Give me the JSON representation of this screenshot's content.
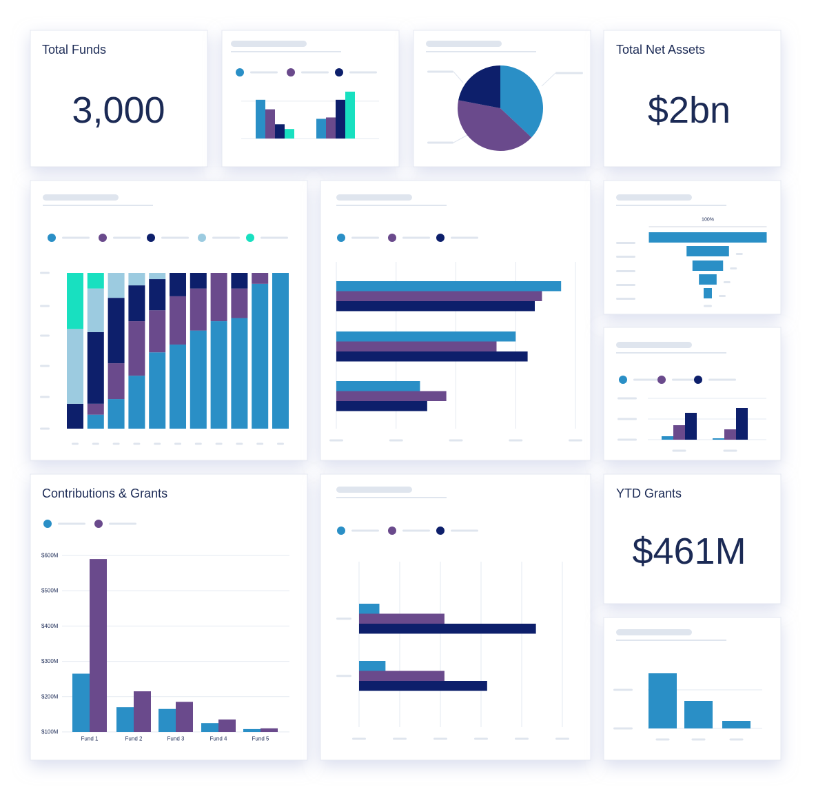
{
  "kpis": [
    {
      "title": "Total Funds",
      "value": "3,000"
    },
    {
      "title": "Total Net Assets",
      "value": "$2bn"
    },
    {
      "title": "YTD Grants",
      "value": "$461M"
    }
  ],
  "chart_data": [
    {
      "type": "bar",
      "categories": [
        null,
        null
      ],
      "ylim": [
        0,
        70
      ],
      "yticks": [
        0,
        55
      ],
      "series": [
        {
          "color": "#2a8fc6",
          "values": [
            57,
            29
          ]
        },
        {
          "color": "#6a4a8c",
          "values": [
            43,
            31
          ]
        },
        {
          "color": "#0d1f6b",
          "values": [
            21,
            57
          ]
        },
        {
          "color": "#18e0c0",
          "values": [
            14,
            69
          ]
        }
      ]
    },
    {
      "type": "pie",
      "values": [
        37,
        41,
        22
      ],
      "colors": [
        "#2a8fc6",
        "#6a4a8c",
        "#0d1f6b"
      ]
    },
    {
      "type": "stacked_bar",
      "categories": [
        null,
        null,
        null,
        null,
        null,
        null,
        null,
        null,
        null,
        null,
        null
      ],
      "ylim": [
        0,
        100
      ],
      "series": [
        {
          "color": "#2a8fc6",
          "values": [
            0,
            9,
            19,
            34,
            49,
            54,
            63,
            69,
            71,
            93,
            100
          ]
        },
        {
          "color": "#6a4a8c",
          "values": [
            0,
            7,
            23,
            35,
            27,
            31,
            27,
            31,
            19,
            7,
            0
          ]
        },
        {
          "color": "#0d1f6b",
          "values": [
            16,
            46,
            42,
            23,
            20,
            15,
            10,
            0,
            10,
            0,
            0
          ]
        },
        {
          "color": "#9ccbe0",
          "values": [
            48,
            28,
            16,
            8,
            4,
            0,
            0,
            0,
            0,
            0,
            0
          ]
        },
        {
          "color": "#18e0c0",
          "values": [
            36,
            10,
            0,
            0,
            0,
            0,
            0,
            0,
            0,
            0,
            0
          ]
        }
      ]
    },
    {
      "type": "hbar",
      "categories": [
        null,
        null,
        null
      ],
      "xlim": [
        0,
        100
      ],
      "xticks": [
        0,
        25,
        50,
        75,
        100
      ],
      "series": [
        {
          "color": "#2a8fc6",
          "values": [
            94,
            75,
            35
          ]
        },
        {
          "color": "#6a4a8c",
          "values": [
            86,
            67,
            46
          ]
        },
        {
          "color": "#0d1f6b",
          "values": [
            83,
            80,
            38
          ]
        }
      ]
    },
    {
      "type": "funnel",
      "values": [
        100,
        36,
        26,
        15,
        7
      ],
      "value_labels": [
        "100%",
        null,
        null,
        null,
        null
      ],
      "color": "#2a8fc6"
    },
    {
      "type": "bar",
      "categories": [
        null,
        null
      ],
      "ylim": [
        0,
        60
      ],
      "yticks": [
        0,
        30,
        60
      ],
      "series": [
        {
          "color": "#2a8fc6",
          "values": [
            5,
            2
          ]
        },
        {
          "color": "#6a4a8c",
          "values": [
            21,
            15
          ]
        },
        {
          "color": "#0d1f6b",
          "values": [
            39,
            46
          ]
        }
      ]
    },
    {
      "type": "bar",
      "title": "Contributions & Grants",
      "categories": [
        "Fund 1",
        "Fund 2",
        "Fund 3",
        "Fund 4",
        "Fund 5"
      ],
      "ylim": [
        100,
        600
      ],
      "yticks": [
        {
          "value": 100,
          "label": "$100M"
        },
        {
          "value": 200,
          "label": "$200M"
        },
        {
          "value": 300,
          "label": "$300M"
        },
        {
          "value": 400,
          "label": "$400M"
        },
        {
          "value": 500,
          "label": "$500M"
        },
        {
          "value": 600,
          "label": "$600M"
        }
      ],
      "series": [
        {
          "color": "#2a8fc6",
          "values": [
            265,
            170,
            165,
            125,
            108
          ]
        },
        {
          "color": "#6a4a8c",
          "values": [
            590,
            215,
            185,
            135,
            110
          ]
        }
      ]
    },
    {
      "type": "hbar",
      "categories": [
        null,
        null
      ],
      "xlim": [
        0,
        100
      ],
      "xticks": [
        0,
        20,
        40,
        60,
        80,
        100
      ],
      "series": [
        {
          "color": "#2a8fc6",
          "values": [
            10,
            13
          ]
        },
        {
          "color": "#6a4a8c",
          "values": [
            42,
            42
          ]
        },
        {
          "color": "#0d1f6b",
          "values": [
            87,
            63
          ]
        }
      ]
    },
    {
      "type": "bar",
      "categories": [
        null,
        null,
        null
      ],
      "ylim": [
        0,
        80
      ],
      "yticks": [
        0,
        56
      ],
      "series": [
        {
          "color": "#2a8fc6",
          "values": [
            80,
            40,
            11
          ]
        }
      ]
    }
  ]
}
